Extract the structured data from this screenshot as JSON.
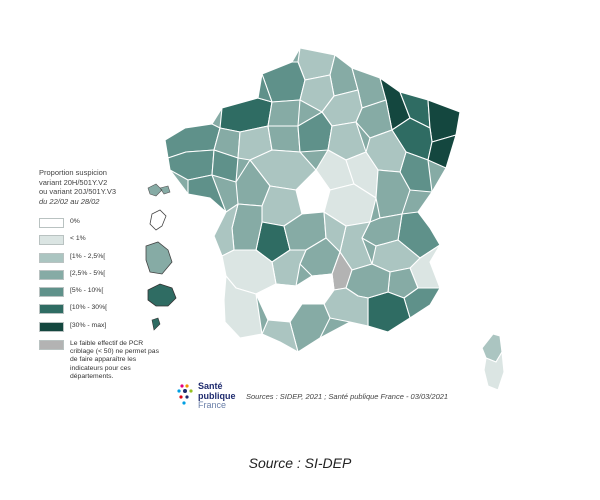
{
  "legend": {
    "title_lines": [
      "Proportion suspicion",
      "variant 20H/501Y.V2",
      "ou variant 20J/501Y.V3"
    ],
    "period": "du 22/02 au 28/02",
    "items": [
      {
        "label": "0%",
        "color": "#ffffff"
      },
      {
        "label": "< 1%",
        "color": "#dbe5e3"
      },
      {
        "label": "[1% - 2,5%[",
        "color": "#abc5c1"
      },
      {
        "label": "[2,5% - 5%[",
        "color": "#86aba5"
      },
      {
        "label": "[5% - 10%[",
        "color": "#5f918a"
      },
      {
        "label": "[10% - 30%[",
        "color": "#2f6c63"
      },
      {
        "label": "[30% - max]",
        "color": "#14473f"
      }
    ],
    "note": {
      "text": "Le faible effectif de PCR criblage (< 50) ne permet pas de faire apparaître les indicateurs pour ces départements.",
      "color": "#b3b3b3"
    }
  },
  "logo": {
    "line1": "Santé",
    "line2": "publique",
    "line3": "France"
  },
  "sources": "Sources : SIDEP, 2021 ; Santé publique France - 03/03/2021",
  "caption": "Source : SI-DEP"
}
